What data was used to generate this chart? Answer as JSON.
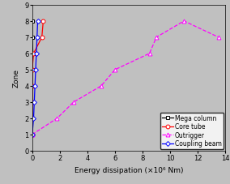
{
  "title": "",
  "xlabel": "Energy dissipation (×10⁶ Nm)",
  "ylabel": "Zone",
  "xlim": [
    0,
    14
  ],
  "ylim": [
    0,
    9
  ],
  "xticks": [
    0,
    2,
    4,
    6,
    8,
    10,
    12,
    14
  ],
  "yticks": [
    0,
    1,
    2,
    3,
    4,
    5,
    6,
    7,
    8,
    9
  ],
  "mega_column": {
    "x": [
      0.0,
      0.0,
      0.0,
      0.0,
      0.0,
      0.05,
      0.0,
      0.0
    ],
    "y": [
      1,
      2,
      3,
      4,
      5,
      6,
      7,
      8
    ],
    "color": "#000000",
    "marker": "s",
    "label": "Mega column"
  },
  "core_tube": {
    "x": [
      0.0,
      0.0,
      0.0,
      0.0,
      0.0,
      0.1,
      0.7,
      0.8
    ],
    "y": [
      1,
      2,
      3,
      4,
      5,
      6,
      7,
      8
    ],
    "color": "#ff0000",
    "marker": "o",
    "label": "Core tube"
  },
  "outrigger": {
    "x": [
      0.0,
      1.8,
      3.0,
      5.0,
      6.0,
      8.5,
      9.0,
      11.0,
      13.5
    ],
    "y": [
      1,
      2,
      3,
      4,
      5,
      6,
      7,
      8,
      7
    ],
    "color": "#ff00ff",
    "marker": "^",
    "label": "Outrigger"
  },
  "coupling_beam": {
    "x": [
      0.0,
      0.1,
      0.15,
      0.2,
      0.25,
      0.3,
      0.35,
      0.4
    ],
    "y": [
      1,
      2,
      3,
      4,
      5,
      6,
      7,
      8
    ],
    "color": "#0000ff",
    "marker": "D",
    "label": "Coupling beam"
  },
  "bg_color": "#c0c0c0",
  "legend_fontsize": 5.5,
  "axis_fontsize": 6.5,
  "tick_fontsize": 6
}
